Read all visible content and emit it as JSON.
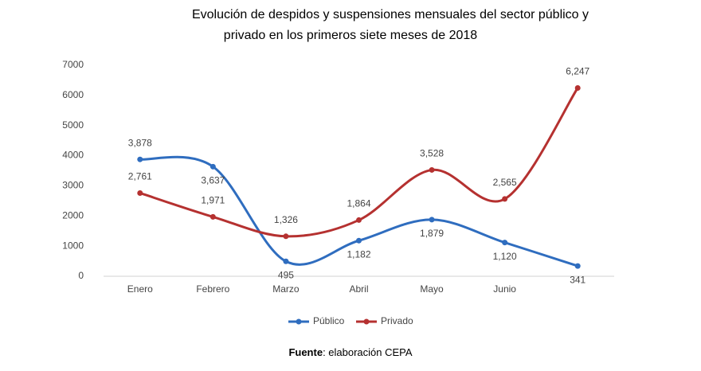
{
  "chart_data": {
    "type": "line",
    "title": [
      "Evolución de despidos y suspensiones mensuales del sector público y",
      "privado en los primeros siete meses de 2018"
    ],
    "categories": [
      "Enero",
      "Febrero",
      "Marzo",
      "Abril",
      "Mayo",
      "Junio",
      null
    ],
    "series": [
      {
        "name": "Público",
        "color": "#2f6dbf",
        "values": [
          3878,
          3637,
          495,
          1182,
          1879,
          1120,
          341
        ],
        "value_labels": [
          "3,878",
          "3,637",
          "495",
          "1,182",
          "1,879",
          "1,120",
          "341"
        ]
      },
      {
        "name": "Privado",
        "color": "#b53130",
        "values": [
          2761,
          1971,
          1326,
          1864,
          3528,
          2565,
          6247
        ],
        "value_labels": [
          "2,761",
          "1,971",
          "1,326",
          "1,864",
          "3,528",
          "2,565",
          "6,247"
        ]
      }
    ],
    "ylim": [
      0,
      7000
    ],
    "yticks": [
      0,
      1000,
      2000,
      3000,
      4000,
      5000,
      6000,
      7000
    ],
    "grid": false,
    "legend": "bottom",
    "source": {
      "label": "Fuente",
      "text": ": elaboración CEPA"
    }
  }
}
